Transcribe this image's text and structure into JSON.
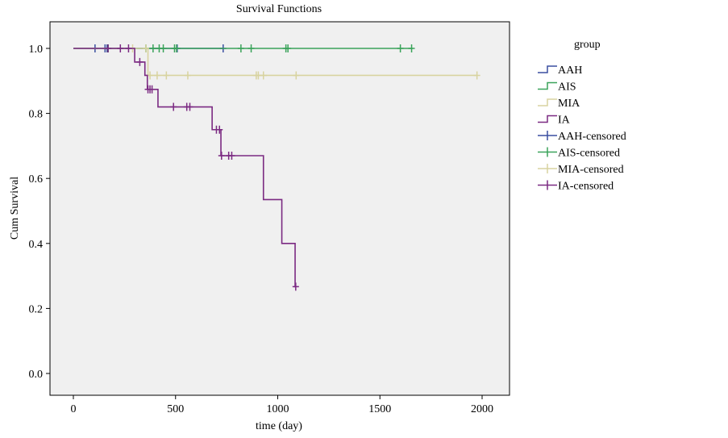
{
  "chart_data": {
    "type": "line",
    "subtype": "kaplan-meier step",
    "title": "Survival Functions",
    "xlabel": "time (day)",
    "ylabel": "Cum Survival",
    "xlim": [
      -120,
      2150
    ],
    "ylim": [
      -0.07,
      1.08
    ],
    "xticks": [
      0,
      500,
      1000,
      1500,
      2000
    ],
    "yticks": [
      "0.0",
      "0.2",
      "0.4",
      "0.6",
      "0.8",
      "1.0"
    ],
    "grid": false,
    "legend_title": "group",
    "legend_position": "right",
    "legend": [
      "AAH",
      "AIS",
      "MIA",
      "IA",
      "AAH-censored",
      "AIS-censored",
      "MIA-censored",
      "IA-censored"
    ],
    "series": [
      {
        "name": "AAH",
        "color": "#3a4fa0",
        "end": 735,
        "steps": [
          [
            0,
            1.0
          ]
        ],
        "censored": [
          106,
          155,
          165,
          508,
          733
        ]
      },
      {
        "name": "AIS",
        "color": "#3aa35a",
        "end": 1660,
        "steps": [
          [
            0,
            1.0
          ]
        ],
        "censored": [
          170,
          355,
          390,
          420,
          440,
          495,
          505,
          820,
          870,
          1040,
          1050,
          1600,
          1655
        ]
      },
      {
        "name": "MIA",
        "color": "#d8d3a0",
        "end": 1975,
        "steps": [
          [
            0,
            1.0
          ],
          [
            365,
            0.917
          ]
        ],
        "censored": [
          290,
          355,
          375,
          410,
          455,
          560,
          895,
          905,
          930,
          1090,
          1975
        ]
      },
      {
        "name": "IA",
        "color": "#7b2a82",
        "end": 1090,
        "steps": [
          [
            0,
            1.0
          ],
          [
            300,
            0.958
          ],
          [
            350,
            0.917
          ],
          [
            362,
            0.874
          ],
          [
            414,
            0.82
          ],
          [
            679,
            0.75
          ],
          [
            722,
            0.67
          ],
          [
            930,
            0.535
          ],
          [
            1020,
            0.4
          ],
          [
            1085,
            0.267
          ]
        ],
        "censored": [
          170,
          230,
          270,
          325,
          365,
          375,
          385,
          490,
          555,
          570,
          700,
          715,
          725,
          760,
          775,
          1088
        ]
      }
    ]
  }
}
